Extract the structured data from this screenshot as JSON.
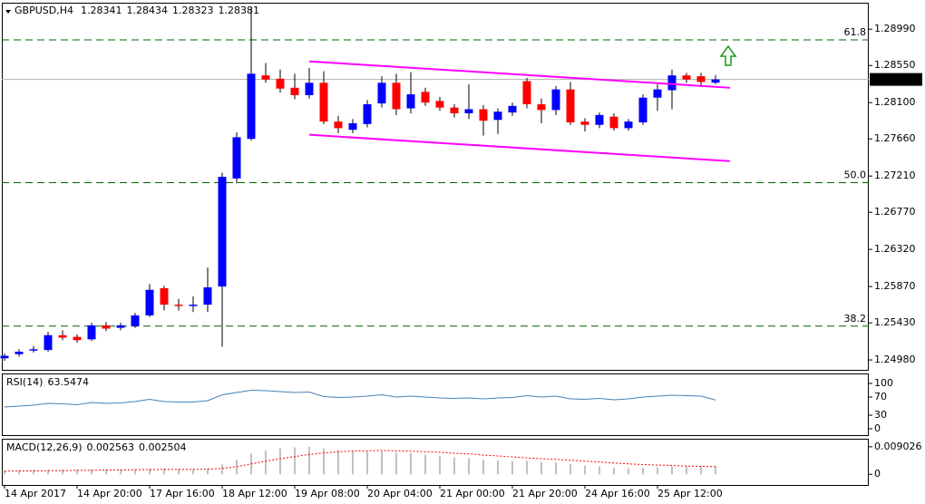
{
  "chart_data": [
    {
      "type": "candlestick",
      "title": "GBPUSD,H4",
      "categories": [
        "14 Apr 2017",
        null,
        null,
        null,
        null,
        "14 Apr 20:00",
        null,
        null,
        null,
        null,
        "17 Apr 16:00",
        null,
        null,
        null,
        null,
        "18 Apr 12:00",
        null,
        null,
        null,
        null,
        "19 Apr 08:00",
        null,
        null,
        null,
        null,
        "20 Apr 04:00",
        null,
        null,
        null,
        null,
        "21 Apr 00:00",
        null,
        null,
        null,
        null,
        "21 Apr 20:00",
        null,
        null,
        null,
        null,
        "24 Apr 16:00",
        null,
        null,
        null,
        null,
        "25 Apr 12:00",
        null,
        null,
        null,
        null
      ],
      "open": [
        1.25,
        1.2505,
        1.251,
        1.251,
        1.2528,
        1.2526,
        1.2523,
        1.254,
        1.2537,
        1.2539,
        1.2552,
        1.2585,
        1.2565,
        1.2564,
        1.2565,
        1.2587,
        1.2718,
        1.2766,
        1.2843,
        1.2839,
        1.2828,
        1.2819,
        1.2834,
        1.2787,
        1.2777,
        1.2784,
        1.2809,
        1.2834,
        1.2803,
        1.2823,
        1.2812,
        1.2804,
        1.2797,
        1.2802,
        1.2789,
        1.2798,
        1.2836,
        1.2808,
        1.2801,
        1.2826,
        1.2787,
        1.2783,
        1.2793,
        1.2779,
        1.2786,
        1.2816,
        1.2825,
        1.2843,
        1.2842,
        1.28341
      ],
      "high": [
        1.2506,
        1.2511,
        1.2515,
        1.2532,
        1.2534,
        1.2529,
        1.2543,
        1.2544,
        1.2543,
        1.2555,
        1.259,
        1.2588,
        1.2572,
        1.2575,
        1.261,
        1.2725,
        1.2774,
        1.2925,
        1.2858,
        1.285,
        1.2845,
        1.2852,
        1.2848,
        1.2794,
        1.279,
        1.2813,
        1.2842,
        1.2845,
        1.2847,
        1.2828,
        1.2817,
        1.2808,
        1.2832,
        1.2807,
        1.2803,
        1.281,
        1.284,
        1.2815,
        1.283,
        1.2835,
        1.2791,
        1.2798,
        1.2797,
        1.279,
        1.282,
        1.2832,
        1.285,
        1.2846,
        1.2846,
        1.28434
      ],
      "low": [
        1.2497,
        1.2502,
        1.2507,
        1.2508,
        1.2522,
        1.2519,
        1.2521,
        1.2533,
        1.2534,
        1.2537,
        1.255,
        1.2558,
        1.2558,
        1.2556,
        1.2556,
        1.2514,
        1.2712,
        1.2764,
        1.2834,
        1.2822,
        1.2814,
        1.2815,
        1.2784,
        1.2773,
        1.2773,
        1.278,
        1.2804,
        1.2795,
        1.2797,
        1.2806,
        1.28,
        1.2792,
        1.279,
        1.277,
        1.2772,
        1.2794,
        1.2803,
        1.2785,
        1.2795,
        1.2783,
        1.2775,
        1.2779,
        1.2776,
        1.2776,
        1.2783,
        1.28,
        1.2802,
        1.2834,
        1.2831,
        1.28323
      ],
      "close": [
        1.2503,
        1.2508,
        1.2511,
        1.2528,
        1.2525,
        1.2522,
        1.254,
        1.2536,
        1.254,
        1.2552,
        1.2583,
        1.2565,
        1.2564,
        1.2565,
        1.2586,
        1.272,
        1.2768,
        1.2845,
        1.2838,
        1.2827,
        1.2819,
        1.2834,
        1.2787,
        1.2779,
        1.2785,
        1.2808,
        1.2834,
        1.2802,
        1.282,
        1.281,
        1.2804,
        1.2797,
        1.2802,
        1.2788,
        1.2799,
        1.2806,
        1.2808,
        1.2801,
        1.2826,
        1.2786,
        1.2783,
        1.2795,
        1.2779,
        1.2787,
        1.2816,
        1.2826,
        1.2843,
        1.2838,
        1.2835,
        1.28381
      ],
      "up_color": "#0000ff",
      "down_color": "#ff0000",
      "ylim": [
        1.2486,
        1.293
      ],
      "yticks": [
        {
          "value": 1.2498,
          "label": "1.24980"
        },
        {
          "value": 1.2543,
          "label": "1.25430"
        },
        {
          "value": 1.2587,
          "label": "1.25870"
        },
        {
          "value": 1.2632,
          "label": "1.26320"
        },
        {
          "value": 1.2677,
          "label": "1.26770"
        },
        {
          "value": 1.2721,
          "label": "1.27210"
        },
        {
          "value": 1.2766,
          "label": "1.27660"
        },
        {
          "value": 1.281,
          "label": "1.28100"
        },
        {
          "value": 1.2855,
          "label": "1.28550"
        },
        {
          "value": 1.2899,
          "label": "1.28990"
        }
      ],
      "fibonacci": [
        {
          "label": "61.8",
          "price": 1.2886
        },
        {
          "label": "50.0",
          "price": 1.2713
        },
        {
          "label": "38.2",
          "price": 1.2539
        }
      ],
      "fib_color": "#006400",
      "trendlines": [
        {
          "start": [
            21,
            1.286
          ],
          "end": [
            50,
            1.2828
          ]
        },
        {
          "start": [
            21,
            1.2771
          ],
          "end": [
            50,
            1.2739
          ]
        }
      ],
      "trendline_color": "#ff00ff"
    },
    {
      "type": "line",
      "title": "RSI(14)",
      "values": [
        48,
        50,
        52,
        56,
        55,
        53,
        58,
        56,
        57,
        60,
        65,
        60,
        59,
        59,
        62,
        75,
        80,
        85,
        84,
        82,
        80,
        81,
        71,
        69,
        70,
        72,
        75,
        70,
        72,
        70,
        68,
        67,
        68,
        66,
        68,
        69,
        73,
        70,
        72,
        66,
        65,
        67,
        64,
        66,
        70,
        72,
        74,
        73,
        72,
        63.5474
      ],
      "color": "#4682b4",
      "ylim": [
        -14,
        120
      ],
      "yticks": [
        0,
        30,
        70,
        100
      ]
    },
    {
      "type": "macd",
      "title": "MACD(12,26,9)",
      "series": [
        {
          "color": "#c0c0c0",
          "values": [
            0.0012,
            0.0013,
            0.0014,
            0.0015,
            0.0015,
            0.0015,
            0.0016,
            0.0016,
            0.0016,
            0.0017,
            0.0019,
            0.0019,
            0.0018,
            0.0017,
            0.0018,
            0.0032,
            0.0048,
            0.0068,
            0.0078,
            0.0085,
            0.0088,
            0.009,
            0.0085,
            0.008,
            0.0076,
            0.0074,
            0.0075,
            0.0071,
            0.0069,
            0.0065,
            0.0061,
            0.0056,
            0.0053,
            0.0048,
            0.0045,
            0.0043,
            0.0044,
            0.004,
            0.0039,
            0.0033,
            0.0029,
            0.0026,
            0.0022,
            0.002,
            0.0021,
            0.0023,
            0.0026,
            0.0027,
            0.0027,
            0.002563
          ]
        },
        {
          "color": "#ff0000",
          "values": [
            0.001,
            0.0011,
            0.0011,
            0.0012,
            0.0012,
            0.0013,
            0.0013,
            0.0014,
            0.0014,
            0.0015,
            0.0015,
            0.0016,
            0.0016,
            0.0016,
            0.0017,
            0.0019,
            0.0025,
            0.0034,
            0.0043,
            0.0051,
            0.0058,
            0.0065,
            0.007,
            0.0074,
            0.0076,
            0.0077,
            0.0078,
            0.0077,
            0.0076,
            0.0074,
            0.0072,
            0.0069,
            0.0067,
            0.0063,
            0.006,
            0.0057,
            0.0054,
            0.0051,
            0.0049,
            0.0046,
            0.0043,
            0.004,
            0.0037,
            0.0034,
            0.0032,
            0.003,
            0.0029,
            0.0027,
            0.0026,
            0.002504
          ]
        }
      ],
      "ylim": [
        -0.0035,
        0.01136
      ],
      "yticks": [
        0,
        0.009026
      ]
    }
  ]
}
